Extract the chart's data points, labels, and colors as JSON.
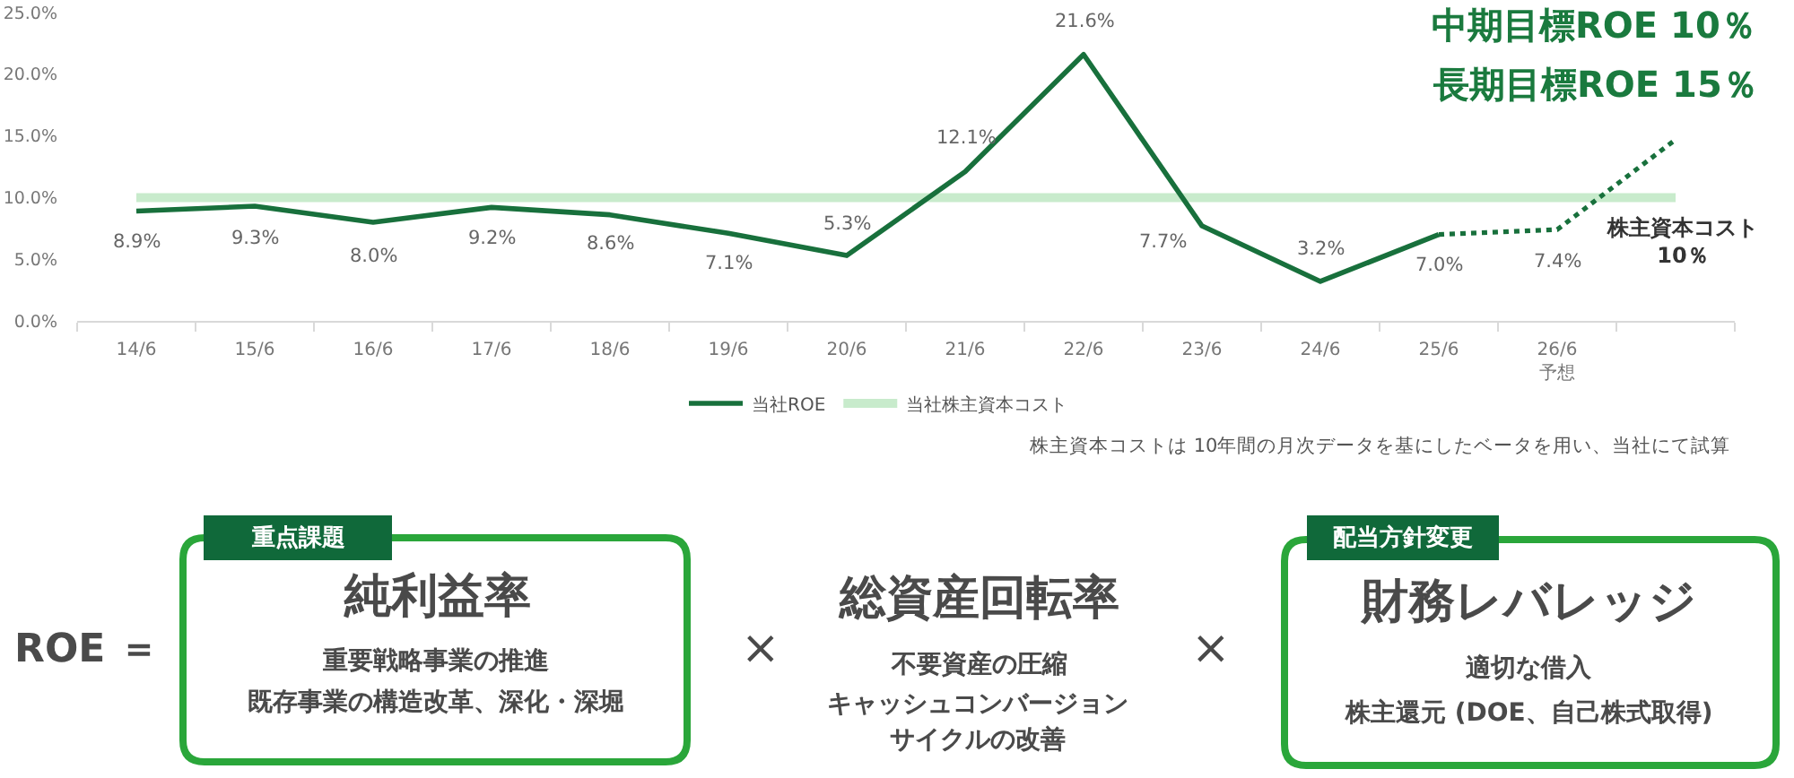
{
  "chart_data": [
    {
      "type": "line",
      "categories": [
        "14/6",
        "15/6",
        "16/6",
        "17/6",
        "18/6",
        "19/6",
        "20/6",
        "21/6",
        "22/6",
        "23/6",
        "24/6",
        "25/6",
        "26/6\n予想",
        null
      ],
      "series": [
        {
          "name": "当社ROE",
          "color": "#18703c",
          "values": [
            8.9,
            9.3,
            8.0,
            9.2,
            8.6,
            7.1,
            5.3,
            12.1,
            21.6,
            7.7,
            3.2,
            7.0,
            null,
            null
          ],
          "value_labels": [
            "8.9%",
            "9.3%",
            "8.0%",
            "9.2%",
            "8.6%",
            "7.1%",
            "5.3%",
            "12.1%",
            "21.6%",
            "7.7%",
            "3.2%",
            "7.0%",
            null,
            null
          ]
        },
        {
          "color": "#18703c",
          "line_style": "dotted",
          "values": [
            null,
            null,
            null,
            null,
            null,
            null,
            null,
            null,
            null,
            null,
            null,
            7.0,
            7.4,
            14.7
          ],
          "value_labels": [
            null,
            null,
            null,
            null,
            null,
            null,
            null,
            null,
            null,
            null,
            null,
            null,
            "7.4%",
            null
          ]
        },
        {
          "name": "当社株主資本コスト",
          "color": "#c8ebcc",
          "values": [
            10,
            10,
            10,
            10,
            10,
            10,
            10,
            10,
            10,
            10,
            10,
            10,
            10,
            10
          ]
        }
      ],
      "ylim": [
        0,
        25
      ],
      "yticks": [
        {
          "value": 0,
          "label": "0.0%"
        },
        {
          "value": 5,
          "label": "5.0%"
        },
        {
          "value": 10,
          "label": "10.0%"
        },
        {
          "value": 15,
          "label": "15.0%"
        },
        {
          "value": 20,
          "label": "20.0%"
        },
        {
          "value": 25,
          "label": "25.0%"
        }
      ],
      "grid": false,
      "legend": "bottom",
      "marker": "none",
      "line_style": "solid",
      "annotations": [
        "中期目標ROE 10％",
        "長期目標ROE 15％",
        "株主資本コスト\n10％",
        "株主資本コストは 10年間の月次データを基にしたベータを用い、当社にて試算"
      ]
    },
    {
      "type": "other",
      "annotations": [
        "ROE ＝",
        "重点課題",
        "純利益率",
        "重要戦略事業の推進",
        "既存事業の構造改革、深化・深堀",
        "×",
        "総資産回転率",
        "不要資産の圧縮",
        "キャッシュコンバージョン",
        "サイクルの改善",
        "×",
        "配当方針変更",
        "財務レバレッジ",
        "適切な借入",
        "株主還元 (DOE、自己株式取得)"
      ]
    }
  ]
}
